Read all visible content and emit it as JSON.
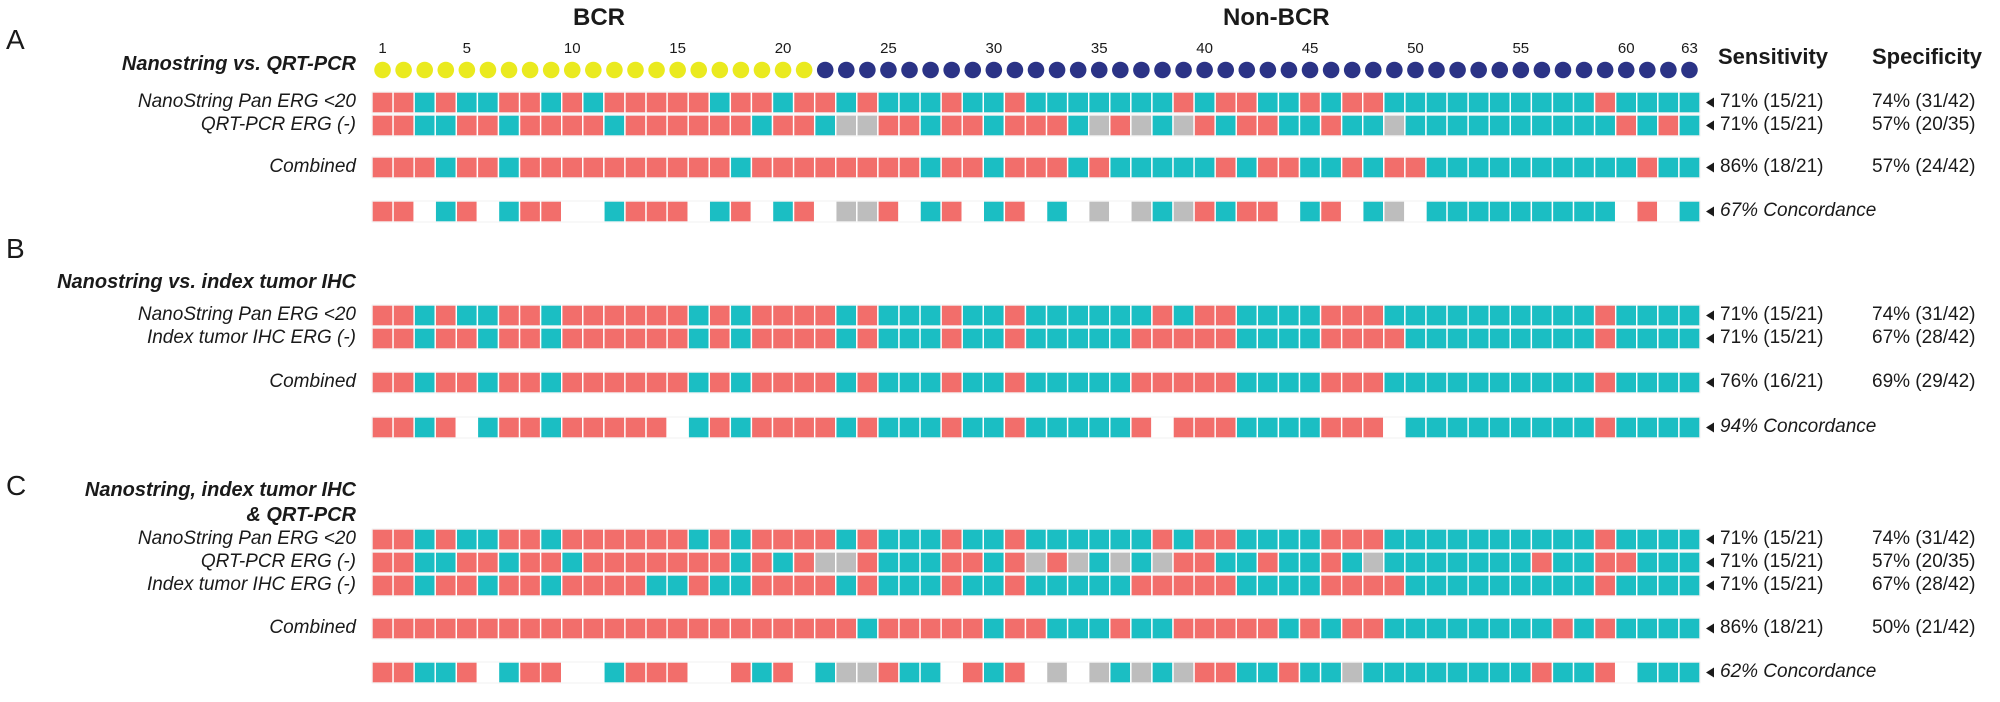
{
  "colors": {
    "red": "#f26e6b",
    "teal": "#1bbec3",
    "gray": "#bdbdbd",
    "white": "#ffffff",
    "bcr_dot": "#eaea1f",
    "nonbcr_dot": "#2b3386"
  },
  "header": {
    "bcr_label": "BCR",
    "nonbcr_label": "Non-BCR",
    "sensitivity_label": "Sensitivity",
    "specificity_label": "Specificity",
    "bcr_count": 21,
    "total": 63,
    "index_labels": [
      "1",
      "5",
      "10",
      "15",
      "20",
      "25",
      "30",
      "35",
      "40",
      "45",
      "50",
      "55",
      "60",
      "63"
    ],
    "index_values": [
      1,
      5,
      10,
      15,
      20,
      25,
      30,
      35,
      40,
      45,
      50,
      55,
      60,
      63
    ]
  },
  "panels": [
    {
      "letter": "A",
      "title_lines": [
        "Nanostring vs. QRT-PCR"
      ],
      "rows": [
        {
          "label": "NanoString Pan ERG <20",
          "sensitivity": "71% (15/21)",
          "specificity": "74% (31/42)",
          "cells": "RRTRTTRRTRTRRRRRTRRTRRTRTTTRTTRTTTTTTTRTRRTTRTRRTTTTTTTTTTRTTTT"
        },
        {
          "label": "QRT-PCR ERG (-)",
          "sensitivity": "71% (15/21)",
          "specificity": "57% (20/35)",
          "cells": "RRTTRRTRRRRTRRRRRRTRRTGGRRTRRTRRRTGRGTGRTRRTTRTTGTTTTTTTTTTRTRT"
        },
        {
          "label": "Combined",
          "sensitivity": "86% (18/21)",
          "specificity": "57% (24/42)",
          "cells": "RRRTRRTRRRRRRRRRRTRRRRRRRRTRRTRRRTRTTTTTRTRRTTRTRRTTTTTTTTTTRTT"
        },
        {
          "label": "",
          "concordance": "67% Concordance",
          "cells": "RRWTRWTRRWWTRRRWTRWTRWGGRWTRWTRWTWGWGTGRTRRWTRWTGWTTTTTTTTTWRWTT"
        }
      ]
    },
    {
      "letter": "B",
      "title_lines": [
        "Nanostring vs. index tumor IHC"
      ],
      "rows": [
        {
          "label": "NanoString Pan ERG <20",
          "sensitivity": "71% (15/21)",
          "specificity": "74% (31/42)",
          "cells": "RRTRTTRRTRRRRRRTRTRRRRTRTTTRTTRTTTTTTRTRRTTTTRRRTTTTTTTTTTRTTTT"
        },
        {
          "label": "Index tumor IHC ERG (-)",
          "sensitivity": "71% (15/21)",
          "specificity": "67% (28/42)",
          "cells": "RRTRRTRRTRRRRRRTRTRRRRTRTTTRTTRTTTTTRRRRRTTTTRRRRTTTTTTTTTRTTTT"
        },
        {
          "label": "Combined",
          "sensitivity": "76% (16/21)",
          "specificity": "69% (29/42)",
          "cells": "RRTRRTRRTRRRRRRTRTRRRRTRTTTRTTRTTTTTRRRRRTTTTRRRTTTTTTTTTTRTTTT"
        },
        {
          "label": "",
          "concordance": "94% Concordance",
          "cells": "RRTRWTRRTRRRRRWTRTRRRRTRTTTRTTRTTTTTRWRRRTTTTRRRWTTTTTTTTTRTTTT"
        }
      ]
    },
    {
      "letter": "C",
      "title_lines": [
        "Nanostring, index tumor IHC",
        "& QRT-PCR"
      ],
      "rows": [
        {
          "label": "NanoString Pan ERG <20",
          "sensitivity": "71% (15/21)",
          "specificity": "74% (31/42)",
          "cells": "RRTRTTRRTRRRRRRTRTRRRRTRTTTRTTRTTTTTTRTRRTTTTRRRTTTTTTTTTTRTTTT"
        },
        {
          "label": "QRT-PCR ERG (-)",
          "sensitivity": "71% (15/21)",
          "specificity": "57% (20/35)",
          "cells": "RRTTRRTRRTRRRRRRRTRTRGGRTTTRRTRGRGTGTGRRTTRTTRTGTTTTTTTRTTRRTTT"
        },
        {
          "label": "Index tumor IHC ERG (-)",
          "sensitivity": "71% (15/21)",
          "specificity": "67% (28/42)",
          "cells": "RRTRRTRRTRRRRTTRTTRRRRTRTTTRTTRTTTTTRRRRRTTTTRRRRTTTTTTTTTRTTTT"
        },
        {
          "label": "Combined",
          "sensitivity": "86% (18/21)",
          "specificity": "50% (21/42)",
          "cells": "RRRRRRRRRRRRRRRRRRRRRRRTRRRRRTRRTTTRTTRRRRRTRTRRTTTTTTTTRTRTTTT"
        },
        {
          "label": "",
          "concordance": "62% Concordance",
          "cells": "RRTTRWTRRWWTRRRWWRTRWTGGRTTWRTRWGWGTGTGRRTTRTTGTTTTTTTTRTTRWTTT"
        }
      ]
    }
  ]
}
